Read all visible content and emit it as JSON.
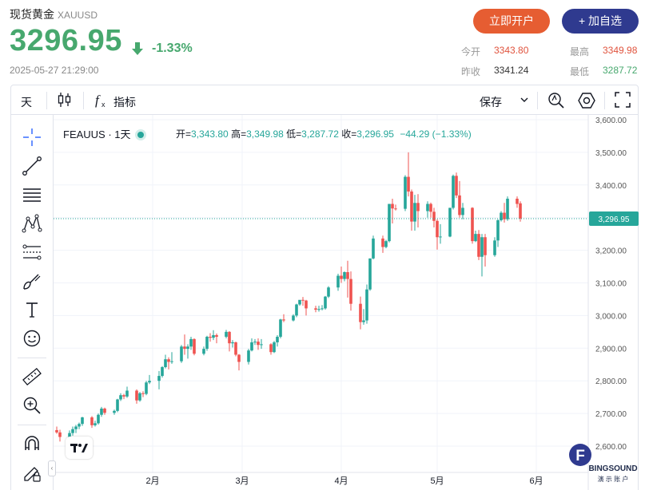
{
  "header": {
    "name": "现货黄金",
    "code": "XAUUSD",
    "price": "3296.95",
    "change_pct": "-1.33%",
    "datetime": "2025-05-27 21:29:00",
    "open_account_label": "立即开户",
    "add_watch_label": "+ 加自选"
  },
  "stats": {
    "open_label": "今开",
    "open_value": "3343.80",
    "high_label": "最高",
    "high_value": "3349.98",
    "prev_close_label": "昨收",
    "prev_close_value": "3341.24",
    "low_label": "最低",
    "low_value": "3287.72"
  },
  "toolbar": {
    "interval_label": "天",
    "indicators_label": "指标",
    "save_label": "保存"
  },
  "legend": {
    "symbol": "FEAUUS · 1天",
    "open_label": "开=",
    "open_value": "3,343.80",
    "high_label": "高=",
    "high_value": "3,349.98",
    "low_label": "低=",
    "low_value": "3,287.72",
    "close_label": "收=",
    "close_value": "3,296.95",
    "change": "−44.29 (−1.33%)"
  },
  "watermark": {
    "letter": "F",
    "text1": "BINGSOUND",
    "text2": "演 示 账 户"
  },
  "colors": {
    "up": "#26a69a",
    "down": "#ef5350",
    "accent_price": "#47a86e",
    "open_button": "#e65d32",
    "watch_button": "#2f3a8f"
  },
  "chart_data": {
    "type": "candlestick",
    "symbol": "FEAUUS",
    "interval": "1天",
    "ylim": [
      2540,
      3620
    ],
    "y_ticks": [
      2600,
      2700,
      2800,
      2900,
      3000,
      3100,
      3200,
      3300,
      3400,
      3500,
      3600
    ],
    "y_tick_labels": [
      "2,600.00",
      "2,700.00",
      "2,800.00",
      "2,900.00",
      "3,000.00",
      "3,100.00",
      "3,200.00",
      "3,300.00",
      "3,400.00",
      "3,500.00",
      "3,600.00"
    ],
    "x_tick_labels": [
      "2月",
      "3月",
      "4月",
      "5月",
      "6月"
    ],
    "x_tick_dates": [
      "2025-02-01",
      "2025-03-01",
      "2025-04-01",
      "2025-05-01",
      "2025-06-01"
    ],
    "current_price": 3296.95,
    "current_price_label": "3,296.95",
    "grid": true,
    "candles": [
      {
        "date": "2025-01-02",
        "o": 2649,
        "h": 2660,
        "l": 2638,
        "c": 2642
      },
      {
        "date": "2025-01-03",
        "o": 2642,
        "h": 2650,
        "l": 2614,
        "c": 2628
      },
      {
        "date": "2025-01-06",
        "o": 2628,
        "h": 2648,
        "l": 2622,
        "c": 2640
      },
      {
        "date": "2025-01-07",
        "o": 2640,
        "h": 2660,
        "l": 2632,
        "c": 2652
      },
      {
        "date": "2025-01-08",
        "o": 2652,
        "h": 2665,
        "l": 2640,
        "c": 2660
      },
      {
        "date": "2025-01-09",
        "o": 2660,
        "h": 2672,
        "l": 2652,
        "c": 2668
      },
      {
        "date": "2025-01-10",
        "o": 2668,
        "h": 2690,
        "l": 2662,
        "c": 2688
      },
      {
        "date": "2025-01-13",
        "o": 2688,
        "h": 2692,
        "l": 2656,
        "c": 2664
      },
      {
        "date": "2025-01-14",
        "o": 2664,
        "h": 2678,
        "l": 2660,
        "c": 2670
      },
      {
        "date": "2025-01-15",
        "o": 2670,
        "h": 2700,
        "l": 2666,
        "c": 2696
      },
      {
        "date": "2025-01-16",
        "o": 2696,
        "h": 2720,
        "l": 2690,
        "c": 2715
      },
      {
        "date": "2025-01-17",
        "o": 2715,
        "h": 2718,
        "l": 2696,
        "c": 2702
      },
      {
        "date": "2025-01-20",
        "o": 2702,
        "h": 2712,
        "l": 2696,
        "c": 2708
      },
      {
        "date": "2025-01-21",
        "o": 2708,
        "h": 2745,
        "l": 2704,
        "c": 2743
      },
      {
        "date": "2025-01-22",
        "o": 2743,
        "h": 2762,
        "l": 2738,
        "c": 2756
      },
      {
        "date": "2025-01-23",
        "o": 2756,
        "h": 2760,
        "l": 2744,
        "c": 2752
      },
      {
        "date": "2025-01-24",
        "o": 2752,
        "h": 2782,
        "l": 2748,
        "c": 2770
      },
      {
        "date": "2025-01-27",
        "o": 2770,
        "h": 2774,
        "l": 2730,
        "c": 2740
      },
      {
        "date": "2025-01-28",
        "o": 2740,
        "h": 2766,
        "l": 2736,
        "c": 2762
      },
      {
        "date": "2025-01-29",
        "o": 2762,
        "h": 2768,
        "l": 2750,
        "c": 2760
      },
      {
        "date": "2025-01-30",
        "o": 2760,
        "h": 2800,
        "l": 2756,
        "c": 2795
      },
      {
        "date": "2025-01-31",
        "o": 2795,
        "h": 2818,
        "l": 2790,
        "c": 2800
      },
      {
        "date": "2025-02-03",
        "o": 2800,
        "h": 2830,
        "l": 2774,
        "c": 2815
      },
      {
        "date": "2025-02-04",
        "o": 2815,
        "h": 2845,
        "l": 2810,
        "c": 2842
      },
      {
        "date": "2025-02-05",
        "o": 2842,
        "h": 2880,
        "l": 2838,
        "c": 2866
      },
      {
        "date": "2025-02-06",
        "o": 2866,
        "h": 2872,
        "l": 2835,
        "c": 2858
      },
      {
        "date": "2025-02-07",
        "o": 2858,
        "h": 2888,
        "l": 2852,
        "c": 2860
      },
      {
        "date": "2025-02-10",
        "o": 2860,
        "h": 2910,
        "l": 2855,
        "c": 2905
      },
      {
        "date": "2025-02-11",
        "o": 2905,
        "h": 2942,
        "l": 2880,
        "c": 2898
      },
      {
        "date": "2025-02-12",
        "o": 2898,
        "h": 2912,
        "l": 2868,
        "c": 2905
      },
      {
        "date": "2025-02-13",
        "o": 2905,
        "h": 2935,
        "l": 2895,
        "c": 2928
      },
      {
        "date": "2025-02-14",
        "o": 2928,
        "h": 2930,
        "l": 2878,
        "c": 2883
      },
      {
        "date": "2025-02-17",
        "o": 2883,
        "h": 2905,
        "l": 2878,
        "c": 2898
      },
      {
        "date": "2025-02-18",
        "o": 2898,
        "h": 2938,
        "l": 2892,
        "c": 2935
      },
      {
        "date": "2025-02-19",
        "o": 2935,
        "h": 2946,
        "l": 2920,
        "c": 2932
      },
      {
        "date": "2025-02-20",
        "o": 2932,
        "h": 2955,
        "l": 2925,
        "c": 2940
      },
      {
        "date": "2025-02-21",
        "o": 2940,
        "h": 2945,
        "l": 2915,
        "c": 2935
      },
      {
        "date": "2025-02-24",
        "o": 2935,
        "h": 2956,
        "l": 2930,
        "c": 2950
      },
      {
        "date": "2025-02-25",
        "o": 2950,
        "h": 2952,
        "l": 2890,
        "c": 2915
      },
      {
        "date": "2025-02-26",
        "o": 2915,
        "h": 2925,
        "l": 2902,
        "c": 2918
      },
      {
        "date": "2025-02-27",
        "o": 2918,
        "h": 2920,
        "l": 2875,
        "c": 2880
      },
      {
        "date": "2025-02-28",
        "o": 2880,
        "h": 2882,
        "l": 2832,
        "c": 2858
      },
      {
        "date": "2025-03-03",
        "o": 2858,
        "h": 2898,
        "l": 2850,
        "c": 2893
      },
      {
        "date": "2025-03-04",
        "o": 2893,
        "h": 2930,
        "l": 2890,
        "c": 2918
      },
      {
        "date": "2025-03-05",
        "o": 2918,
        "h": 2928,
        "l": 2910,
        "c": 2920
      },
      {
        "date": "2025-03-06",
        "o": 2920,
        "h": 2930,
        "l": 2895,
        "c": 2910
      },
      {
        "date": "2025-03-07",
        "o": 2910,
        "h": 2928,
        "l": 2898,
        "c": 2912
      },
      {
        "date": "2025-03-10",
        "o": 2912,
        "h": 2915,
        "l": 2880,
        "c": 2888
      },
      {
        "date": "2025-03-11",
        "o": 2888,
        "h": 2922,
        "l": 2885,
        "c": 2918
      },
      {
        "date": "2025-03-12",
        "o": 2918,
        "h": 2940,
        "l": 2905,
        "c": 2935
      },
      {
        "date": "2025-03-13",
        "o": 2935,
        "h": 2990,
        "l": 2930,
        "c": 2988
      },
      {
        "date": "2025-03-14",
        "o": 2988,
        "h": 3004,
        "l": 2980,
        "c": 2985
      },
      {
        "date": "2025-03-17",
        "o": 2985,
        "h": 3004,
        "l": 2982,
        "c": 3000
      },
      {
        "date": "2025-03-18",
        "o": 3000,
        "h": 3036,
        "l": 2995,
        "c": 3034
      },
      {
        "date": "2025-03-19",
        "o": 3034,
        "h": 3045,
        "l": 3030,
        "c": 3048
      },
      {
        "date": "2025-03-20",
        "o": 3048,
        "h": 3057,
        "l": 3030,
        "c": 3046
      },
      {
        "date": "2025-03-21",
        "o": 3046,
        "h": 3048,
        "l": 3000,
        "c": 3022
      },
      {
        "date": "2025-03-24",
        "o": 3022,
        "h": 3030,
        "l": 3010,
        "c": 3018
      },
      {
        "date": "2025-03-25",
        "o": 3018,
        "h": 3030,
        "l": 3012,
        "c": 3020
      },
      {
        "date": "2025-03-26",
        "o": 3020,
        "h": 3032,
        "l": 3016,
        "c": 3022
      },
      {
        "date": "2025-03-27",
        "o": 3022,
        "h": 3060,
        "l": 3018,
        "c": 3058
      },
      {
        "date": "2025-03-28",
        "o": 3058,
        "h": 3090,
        "l": 3054,
        "c": 3086
      },
      {
        "date": "2025-03-31",
        "o": 3086,
        "h": 3128,
        "l": 3076,
        "c": 3122
      },
      {
        "date": "2025-04-01",
        "o": 3122,
        "h": 3150,
        "l": 3100,
        "c": 3112
      },
      {
        "date": "2025-04-02",
        "o": 3112,
        "h": 3135,
        "l": 3105,
        "c": 3133
      },
      {
        "date": "2025-04-03",
        "o": 3133,
        "h": 3168,
        "l": 3055,
        "c": 3112
      },
      {
        "date": "2025-04-04",
        "o": 3112,
        "h": 3135,
        "l": 3015,
        "c": 3036
      },
      {
        "date": "2025-04-07",
        "o": 3036,
        "h": 3058,
        "l": 2958,
        "c": 2980
      },
      {
        "date": "2025-04-08",
        "o": 2980,
        "h": 3020,
        "l": 2972,
        "c": 2985
      },
      {
        "date": "2025-04-09",
        "o": 2985,
        "h": 3095,
        "l": 2975,
        "c": 3080
      },
      {
        "date": "2025-04-10",
        "o": 3080,
        "h": 3175,
        "l": 3076,
        "c": 3175
      },
      {
        "date": "2025-04-11",
        "o": 3175,
        "h": 3245,
        "l": 3172,
        "c": 3236
      },
      {
        "date": "2025-04-14",
        "o": 3236,
        "h": 3245,
        "l": 3192,
        "c": 3210
      },
      {
        "date": "2025-04-15",
        "o": 3210,
        "h": 3232,
        "l": 3206,
        "c": 3228
      },
      {
        "date": "2025-04-16",
        "o": 3228,
        "h": 3342,
        "l": 3224,
        "c": 3342
      },
      {
        "date": "2025-04-17",
        "o": 3342,
        "h": 3358,
        "l": 3282,
        "c": 3328
      },
      {
        "date": "2025-04-18",
        "o": 3328,
        "h": 3340,
        "l": 3322,
        "c": 3327
      },
      {
        "date": "2025-04-21",
        "o": 3327,
        "h": 3430,
        "l": 3320,
        "c": 3425
      },
      {
        "date": "2025-04-22",
        "o": 3425,
        "h": 3500,
        "l": 3365,
        "c": 3380
      },
      {
        "date": "2025-04-23",
        "o": 3380,
        "h": 3386,
        "l": 3260,
        "c": 3288
      },
      {
        "date": "2025-04-24",
        "o": 3288,
        "h": 3370,
        "l": 3260,
        "c": 3345
      },
      {
        "date": "2025-04-25",
        "o": 3345,
        "h": 3372,
        "l": 3270,
        "c": 3320
      },
      {
        "date": "2025-04-28",
        "o": 3320,
        "h": 3350,
        "l": 3300,
        "c": 3342
      },
      {
        "date": "2025-04-29",
        "o": 3342,
        "h": 3346,
        "l": 3300,
        "c": 3318
      },
      {
        "date": "2025-04-30",
        "o": 3318,
        "h": 3330,
        "l": 3270,
        "c": 3290
      },
      {
        "date": "2025-05-01",
        "o": 3290,
        "h": 3295,
        "l": 3202,
        "c": 3240
      },
      {
        "date": "2025-05-02",
        "o": 3240,
        "h": 3280,
        "l": 3220,
        "c": 3242
      },
      {
        "date": "2025-05-05",
        "o": 3242,
        "h": 3330,
        "l": 3240,
        "c": 3330
      },
      {
        "date": "2025-05-06",
        "o": 3330,
        "h": 3432,
        "l": 3325,
        "c": 3428
      },
      {
        "date": "2025-05-07",
        "o": 3428,
        "h": 3438,
        "l": 3360,
        "c": 3368
      },
      {
        "date": "2025-05-08",
        "o": 3368,
        "h": 3412,
        "l": 3300,
        "c": 3308
      },
      {
        "date": "2025-05-09",
        "o": 3308,
        "h": 3345,
        "l": 3295,
        "c": 3330
      },
      {
        "date": "2025-05-12",
        "o": 3330,
        "h": 3332,
        "l": 3220,
        "c": 3228
      },
      {
        "date": "2025-05-13",
        "o": 3228,
        "h": 3260,
        "l": 3225,
        "c": 3250
      },
      {
        "date": "2025-05-14",
        "o": 3250,
        "h": 3262,
        "l": 3170,
        "c": 3180
      },
      {
        "date": "2025-05-15",
        "o": 3180,
        "h": 3250,
        "l": 3120,
        "c": 3240
      },
      {
        "date": "2025-05-16",
        "o": 3240,
        "h": 3250,
        "l": 3150,
        "c": 3185
      },
      {
        "date": "2025-05-19",
        "o": 3185,
        "h": 3240,
        "l": 3180,
        "c": 3230
      },
      {
        "date": "2025-05-20",
        "o": 3230,
        "h": 3295,
        "l": 3210,
        "c": 3292
      },
      {
        "date": "2025-05-21",
        "o": 3292,
        "h": 3320,
        "l": 3288,
        "c": 3315
      },
      {
        "date": "2025-05-22",
        "o": 3315,
        "h": 3345,
        "l": 3285,
        "c": 3295
      },
      {
        "date": "2025-05-23",
        "o": 3295,
        "h": 3365,
        "l": 3290,
        "c": 3358
      },
      {
        "date": "2025-05-26",
        "o": 3358,
        "h": 3365,
        "l": 3330,
        "c": 3342
      },
      {
        "date": "2025-05-27",
        "o": 3343.8,
        "h": 3349.98,
        "l": 3287.72,
        "c": 3296.95
      }
    ]
  }
}
